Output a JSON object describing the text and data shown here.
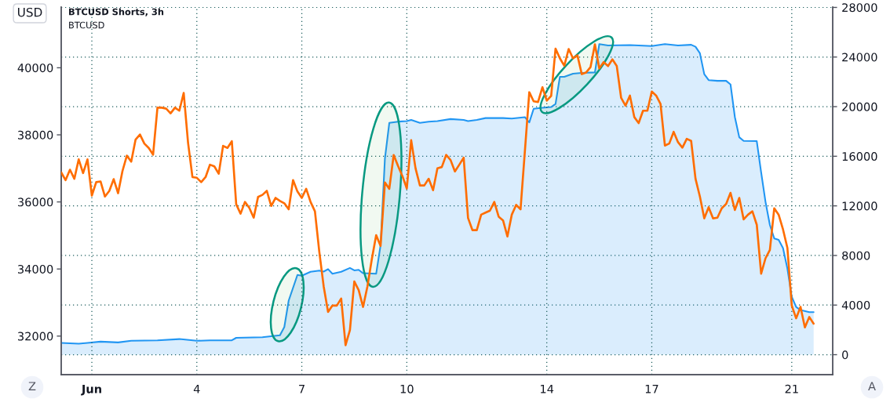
{
  "chart_data": {
    "type": "line",
    "title": "BTCUSD Shorts, 3h",
    "subtitle": "BTCUSD",
    "ylabel": "USD",
    "annotations": [
      "Z",
      "A"
    ],
    "xlim": [
      0.125,
      22.17
    ],
    "xticks": [
      {
        "value": 1,
        "label": "Jun"
      },
      4,
      7,
      10,
      14,
      17,
      21
    ],
    "ylim": [
      30850,
      41810
    ],
    "yticks": [
      32000,
      34000,
      36000,
      38000,
      40000
    ],
    "y2lim": [
      -1610,
      28030
    ],
    "y2ticks": [
      0,
      4000,
      8000,
      12000,
      16000,
      20000,
      24000,
      28000
    ],
    "grid": true,
    "series": [
      {
        "type": "area",
        "axis": "y2",
        "color": "#2196f3",
        "x": [
          0.125,
          0.625,
          0.875,
          1.25,
          1.75,
          2.125,
          2.875,
          3.5,
          4,
          4.375,
          5,
          5.125,
          5.875,
          6.375,
          6.5,
          6.625,
          6.875,
          7,
          7.25,
          7.5,
          7.625,
          7.75,
          7.875,
          8.125,
          8.375,
          8.5,
          8.625,
          8.75,
          9.125,
          9.25,
          9.375,
          9.5,
          9.75,
          10,
          10.125,
          10.375,
          10.625,
          10.875,
          11.25,
          11.625,
          11.75,
          12,
          12.25,
          12.75,
          13,
          13.375,
          13.5,
          13.625,
          13.875,
          14.125,
          14.25,
          14.375,
          14.5,
          14.75,
          15,
          15.375,
          15.5,
          15.75,
          16.375,
          17,
          17.375,
          17.75,
          18.125,
          18.25,
          18.375,
          18.5,
          18.625,
          18.875,
          19.125,
          19.25,
          19.375,
          19.5,
          19.625,
          20,
          20.125,
          20.25,
          20.375,
          20.5,
          20.625,
          20.75,
          20.875,
          21,
          21.125,
          21.25,
          21.5,
          21.625
        ],
        "values": [
          950,
          890,
          950,
          1050,
          990,
          1120,
          1160,
          1260,
          1120,
          1160,
          1160,
          1360,
          1410,
          1570,
          2230,
          4360,
          6430,
          6370,
          6680,
          6780,
          6700,
          6900,
          6530,
          6680,
          6990,
          6800,
          6840,
          6570,
          6530,
          8810,
          15830,
          18690,
          18790,
          18840,
          18930,
          18690,
          18790,
          18840,
          19000,
          18930,
          18840,
          18930,
          19080,
          19080,
          19040,
          19150,
          18730,
          19830,
          19910,
          19970,
          20220,
          22410,
          22410,
          22660,
          22720,
          22760,
          25040,
          24930,
          24970,
          24890,
          25040,
          24930,
          24990,
          24830,
          24310,
          22620,
          22140,
          22080,
          22080,
          21790,
          19150,
          17530,
          17240,
          17220,
          14700,
          12320,
          10460,
          9370,
          9260,
          8600,
          6950,
          4670,
          3850,
          3600,
          3430,
          3430
        ]
      },
      {
        "axis": "y",
        "color": "#ff6d00",
        "x": [
          0.125,
          0.25,
          0.375,
          0.5,
          0.625,
          0.75,
          0.875,
          1,
          1.125,
          1.25,
          1.375,
          1.5,
          1.625,
          1.75,
          1.875,
          2,
          2.125,
          2.25,
          2.375,
          2.5,
          2.625,
          2.75,
          2.875,
          3,
          3.125,
          3.25,
          3.375,
          3.5,
          3.625,
          3.75,
          3.875,
          4,
          4.125,
          4.25,
          4.375,
          4.5,
          4.625,
          4.75,
          4.875,
          5,
          5.125,
          5.25,
          5.375,
          5.5,
          5.625,
          5.75,
          5.875,
          6,
          6.125,
          6.25,
          6.375,
          6.5,
          6.625,
          6.75,
          6.875,
          7,
          7.125,
          7.25,
          7.375,
          7.5,
          7.625,
          7.75,
          7.875,
          8,
          8.125,
          8.25,
          8.375,
          8.5,
          8.625,
          8.75,
          8.875,
          9,
          9.125,
          9.25,
          9.375,
          9.5,
          9.625,
          9.75,
          9.875,
          10,
          10.125,
          10.25,
          10.375,
          10.5,
          10.625,
          10.75,
          10.875,
          11,
          11.125,
          11.25,
          11.375,
          11.5,
          11.625,
          11.75,
          11.875,
          12,
          12.125,
          12.25,
          12.375,
          12.5,
          12.625,
          12.75,
          12.875,
          13,
          13.125,
          13.25,
          13.5,
          13.625,
          13.75,
          13.875,
          14,
          14.125,
          14.25,
          14.375,
          14.5,
          14.625,
          14.75,
          14.875,
          15,
          15.125,
          15.25,
          15.375,
          15.5,
          15.625,
          15.75,
          15.875,
          16,
          16.125,
          16.25,
          16.375,
          16.5,
          16.625,
          16.75,
          16.875,
          17,
          17.125,
          17.25,
          17.375,
          17.5,
          17.625,
          17.75,
          17.875,
          18,
          18.125,
          18.25,
          18.375,
          18.5,
          18.625,
          18.75,
          18.875,
          19,
          19.125,
          19.25,
          19.375,
          19.5,
          19.625,
          19.75,
          19.875,
          20,
          20.125,
          20.25,
          20.375,
          20.5,
          20.625,
          20.75,
          20.875,
          21,
          21.125,
          21.25,
          21.375,
          21.5,
          21.625
        ],
        "values": [
          36880,
          36650,
          36960,
          36690,
          37270,
          36860,
          37270,
          36190,
          36590,
          36610,
          36160,
          36330,
          36680,
          36260,
          36920,
          37380,
          37200,
          37860,
          38010,
          37740,
          37610,
          37410,
          38810,
          38810,
          38780,
          38640,
          38810,
          38720,
          39250,
          37760,
          36740,
          36720,
          36590,
          36740,
          37110,
          37060,
          36840,
          37670,
          37610,
          37810,
          35930,
          35650,
          36000,
          35820,
          35530,
          36150,
          36210,
          36330,
          35880,
          36120,
          36030,
          35960,
          35780,
          36650,
          36310,
          36120,
          36390,
          36000,
          35720,
          34510,
          33480,
          32720,
          32910,
          32910,
          33120,
          31730,
          32180,
          33630,
          33370,
          32870,
          33480,
          34290,
          35010,
          34690,
          36580,
          36390,
          37400,
          37070,
          36770,
          36400,
          37840,
          37000,
          36490,
          36490,
          36690,
          36350,
          37000,
          37040,
          37400,
          37250,
          36910,
          37110,
          37320,
          35520,
          35160,
          35160,
          35620,
          35680,
          35740,
          36000,
          35560,
          35450,
          34970,
          35620,
          35910,
          35780,
          39270,
          39000,
          38980,
          39420,
          39020,
          39160,
          40570,
          40280,
          40060,
          40560,
          40280,
          40370,
          39810,
          39860,
          40020,
          40700,
          39980,
          40170,
          40050,
          40250,
          40050,
          39100,
          38870,
          39170,
          38530,
          38350,
          38720,
          38720,
          39290,
          39170,
          38920,
          37680,
          37740,
          38090,
          37780,
          37620,
          37880,
          37820,
          36690,
          36160,
          35510,
          35840,
          35510,
          35530,
          35810,
          35940,
          36270,
          35760,
          36120,
          35480,
          35620,
          35720,
          35320,
          33860,
          34320,
          34570,
          35810,
          35620,
          35180,
          34630,
          32910,
          32530,
          32870,
          32260,
          32570,
          32370
        ]
      }
    ]
  }
}
